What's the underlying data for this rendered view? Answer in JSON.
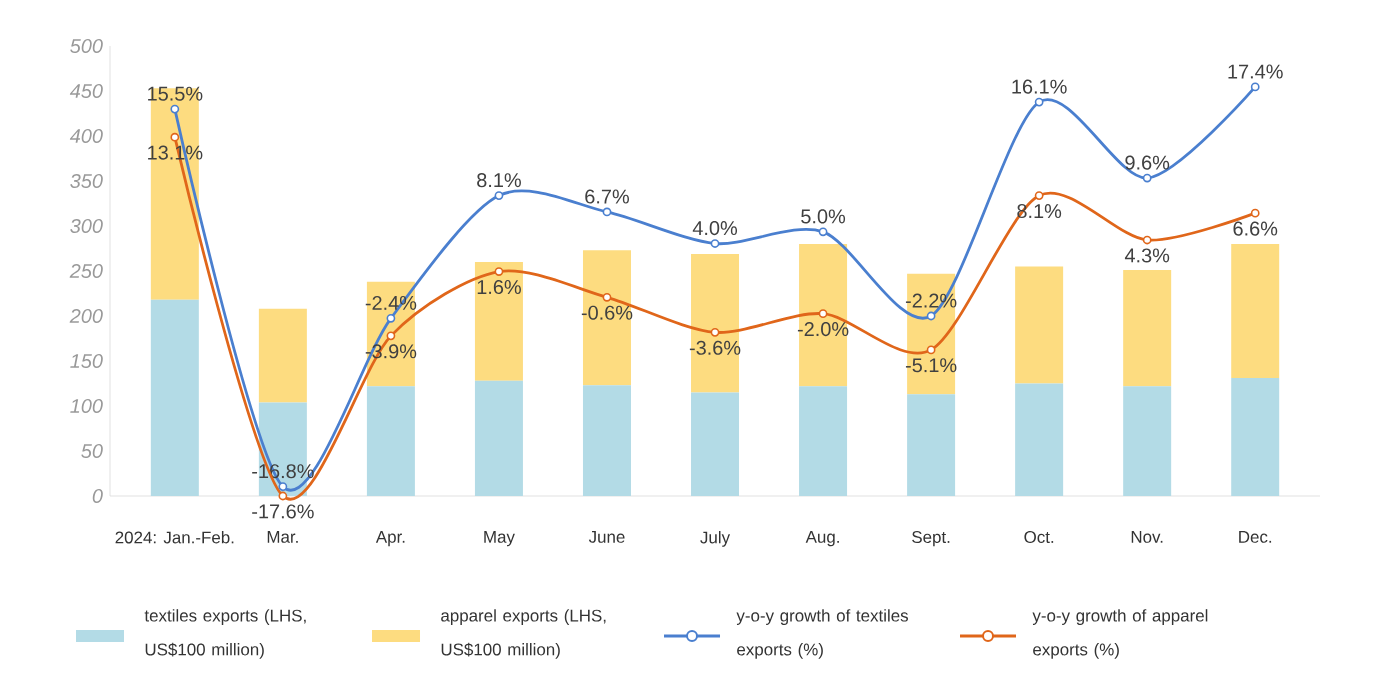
{
  "chart_data": {
    "type": "bar",
    "stacked": true,
    "legend": "bottom",
    "marker": "circle",
    "categories": [
      "2024: Jan.-Feb.",
      "Mar.",
      "Apr.",
      "May",
      "June",
      "July",
      "Aug.",
      "Sept.",
      "Oct.",
      "Nov.",
      "Dec."
    ],
    "ylim": [
      0,
      500
    ],
    "yticks": [
      0,
      50,
      100,
      150,
      200,
      250,
      300,
      350,
      400,
      450,
      500
    ],
    "series": [
      {
        "name": "textiles exports (LHS, US$100 million)",
        "color": "#b3dbe6",
        "values": [
          218,
          104,
          122,
          128,
          123,
          115,
          122,
          113,
          125,
          122,
          131
        ]
      },
      {
        "name": "apparel exports (LHS, US$100 million)",
        "color": "#fddc80",
        "values": [
          235,
          104,
          116,
          132,
          150,
          154,
          158,
          134,
          130,
          129,
          149
        ]
      },
      {
        "name": "y-o-y growth of textiles exports (%)",
        "type": "line",
        "axis": "y2",
        "color": "#4a7fcf",
        "values": [
          15.5,
          -16.8,
          -2.4,
          8.1,
          6.7,
          4.0,
          5.0,
          -2.2,
          16.1,
          9.6,
          17.4
        ],
        "value_labels": [
          "15.5%",
          "-16.8%",
          "-2.4%",
          "8.1%",
          "6.7%",
          "4.0%",
          "5.0%",
          "-2.2%",
          "16.1%",
          "9.6%",
          "17.4%"
        ]
      },
      {
        "name": "y-o-y growth of apparel exports (%)",
        "type": "line",
        "axis": "y2",
        "color": "#e0661a",
        "values": [
          13.1,
          -17.6,
          -3.9,
          1.6,
          -0.6,
          -3.6,
          -2.0,
          -5.1,
          8.1,
          4.3,
          6.6
        ],
        "value_labels": [
          "13.1%",
          "-17.6%",
          "-3.9%",
          "1.6%",
          "-0.6%",
          "-3.6%",
          "-2.0%",
          "-5.1%",
          "8.1%",
          "4.3%",
          "6.6%"
        ]
      }
    ]
  }
}
